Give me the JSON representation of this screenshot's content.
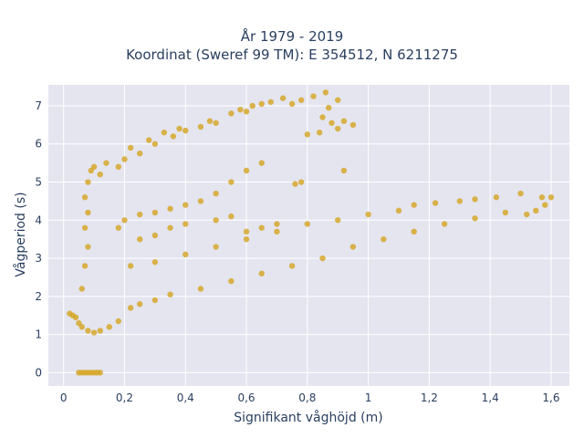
{
  "chart_data": {
    "type": "scatter",
    "title_lines": [
      "År 1979 - 2019",
      "Koordinat (Sweref 99 TM): E 354512, N 6211275"
    ],
    "xlabel": "Signifikant våghöjd (m)",
    "ylabel": "Vågperiod (s)",
    "xlim": [
      -0.05,
      1.66
    ],
    "ylim": [
      -0.35,
      7.55
    ],
    "xticks": [
      0,
      0.2,
      0.4,
      0.6,
      0.8,
      1,
      1.2,
      1.4,
      1.6
    ],
    "xtick_labels": [
      "0",
      "0,2",
      "0,4",
      "0,6",
      "0,8",
      "1",
      "1,2",
      "1,4",
      "1,6"
    ],
    "yticks": [
      0,
      1,
      2,
      3,
      4,
      5,
      6,
      7
    ],
    "ytick_labels": [
      "0",
      "1",
      "2",
      "3",
      "4",
      "5",
      "6",
      "7"
    ],
    "grid": true,
    "legend": "none",
    "marker_color": "#d4a41f",
    "background_color": "#e5e5f0",
    "series": [
      {
        "points": [
          [
            0.05,
            0.0
          ],
          [
            0.06,
            0.0
          ],
          [
            0.07,
            0.0
          ],
          [
            0.08,
            0.0
          ],
          [
            0.09,
            0.0
          ],
          [
            0.1,
            0.0
          ],
          [
            0.11,
            0.0
          ],
          [
            0.12,
            0.0
          ],
          [
            0.02,
            1.55
          ],
          [
            0.03,
            1.5
          ],
          [
            0.04,
            1.45
          ],
          [
            0.05,
            1.3
          ],
          [
            0.06,
            1.2
          ],
          [
            0.08,
            1.1
          ],
          [
            0.1,
            1.05
          ],
          [
            0.12,
            1.1
          ],
          [
            0.15,
            1.2
          ],
          [
            0.18,
            1.35
          ],
          [
            0.06,
            2.2
          ],
          [
            0.07,
            2.8
          ],
          [
            0.08,
            3.3
          ],
          [
            0.07,
            3.8
          ],
          [
            0.08,
            4.2
          ],
          [
            0.07,
            4.6
          ],
          [
            0.08,
            5.0
          ],
          [
            0.09,
            5.3
          ],
          [
            0.1,
            5.4
          ],
          [
            0.12,
            5.2
          ],
          [
            0.14,
            5.5
          ],
          [
            0.18,
            5.4
          ],
          [
            0.2,
            5.6
          ],
          [
            0.22,
            5.9
          ],
          [
            0.25,
            5.75
          ],
          [
            0.28,
            6.1
          ],
          [
            0.3,
            6.0
          ],
          [
            0.33,
            6.3
          ],
          [
            0.36,
            6.2
          ],
          [
            0.38,
            6.4
          ],
          [
            0.4,
            6.35
          ],
          [
            0.45,
            6.45
          ],
          [
            0.48,
            6.6
          ],
          [
            0.5,
            6.55
          ],
          [
            0.55,
            6.8
          ],
          [
            0.58,
            6.9
          ],
          [
            0.6,
            6.85
          ],
          [
            0.62,
            7.0
          ],
          [
            0.65,
            7.05
          ],
          [
            0.68,
            7.1
          ],
          [
            0.72,
            7.2
          ],
          [
            0.75,
            7.05
          ],
          [
            0.78,
            7.15
          ],
          [
            0.82,
            7.25
          ],
          [
            0.86,
            7.35
          ],
          [
            0.9,
            7.15
          ],
          [
            0.87,
            6.95
          ],
          [
            0.85,
            6.7
          ],
          [
            0.88,
            6.55
          ],
          [
            0.92,
            6.6
          ],
          [
            0.95,
            6.5
          ],
          [
            0.9,
            6.4
          ],
          [
            0.84,
            6.3
          ],
          [
            0.8,
            6.25
          ],
          [
            0.92,
            5.3
          ],
          [
            0.78,
            5.0
          ],
          [
            0.76,
            4.95
          ],
          [
            0.65,
            5.5
          ],
          [
            0.6,
            5.3
          ],
          [
            0.55,
            5.0
          ],
          [
            0.5,
            4.7
          ],
          [
            0.45,
            4.5
          ],
          [
            0.4,
            4.4
          ],
          [
            0.35,
            4.3
          ],
          [
            0.3,
            4.2
          ],
          [
            0.25,
            4.15
          ],
          [
            0.2,
            4.0
          ],
          [
            0.18,
            3.8
          ],
          [
            0.25,
            3.5
          ],
          [
            0.3,
            3.6
          ],
          [
            0.35,
            3.8
          ],
          [
            0.4,
            3.9
          ],
          [
            0.5,
            4.0
          ],
          [
            0.55,
            4.1
          ],
          [
            0.6,
            3.7
          ],
          [
            0.65,
            3.8
          ],
          [
            0.7,
            3.9
          ],
          [
            0.3,
            1.9
          ],
          [
            0.25,
            1.8
          ],
          [
            0.22,
            1.7
          ],
          [
            0.35,
            2.05
          ],
          [
            0.45,
            2.2
          ],
          [
            0.55,
            2.4
          ],
          [
            0.65,
            2.6
          ],
          [
            0.75,
            2.8
          ],
          [
            0.85,
            3.0
          ],
          [
            0.95,
            3.3
          ],
          [
            1.05,
            3.5
          ],
          [
            1.15,
            3.7
          ],
          [
            1.25,
            3.9
          ],
          [
            1.35,
            4.05
          ],
          [
            1.45,
            4.2
          ],
          [
            1.52,
            4.15
          ],
          [
            1.55,
            4.25
          ],
          [
            1.58,
            4.4
          ],
          [
            1.57,
            4.6
          ],
          [
            1.6,
            4.6
          ],
          [
            1.5,
            4.7
          ],
          [
            1.42,
            4.6
          ],
          [
            1.35,
            4.55
          ],
          [
            1.3,
            4.5
          ],
          [
            1.22,
            4.45
          ],
          [
            1.15,
            4.4
          ],
          [
            1.1,
            4.25
          ],
          [
            1.0,
            4.15
          ],
          [
            0.9,
            4.0
          ],
          [
            0.8,
            3.9
          ],
          [
            0.7,
            3.7
          ],
          [
            0.6,
            3.5
          ],
          [
            0.5,
            3.3
          ],
          [
            0.4,
            3.1
          ],
          [
            0.3,
            2.9
          ],
          [
            0.22,
            2.8
          ]
        ]
      }
    ]
  }
}
